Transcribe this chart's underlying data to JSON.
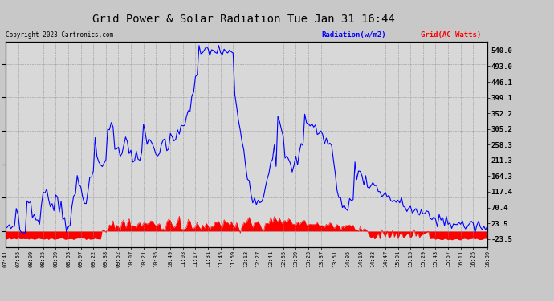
{
  "title": "Grid Power & Solar Radiation Tue Jan 31 16:44",
  "copyright": "Copyright 2023 Cartronics.com",
  "legend_radiation": "Radiation(w/m2)",
  "legend_grid": "Grid(AC Watts)",
  "radiation_color": "blue",
  "grid_color": "red",
  "background_color": "#c8c8c8",
  "plot_bg_color": "#d8d8d8",
  "yticks_right": [
    540.0,
    493.0,
    446.1,
    399.1,
    352.2,
    305.2,
    258.3,
    211.3,
    164.3,
    117.4,
    70.4,
    23.5,
    -23.5
  ],
  "ylim": [
    -47,
    565
  ],
  "xlabels": [
    "07:41",
    "07:55",
    "08:09",
    "08:25",
    "08:39",
    "08:53",
    "09:07",
    "09:22",
    "09:38",
    "09:52",
    "10:07",
    "10:21",
    "10:35",
    "10:49",
    "11:03",
    "11:17",
    "11:31",
    "11:45",
    "11:59",
    "12:13",
    "12:27",
    "12:41",
    "12:55",
    "13:09",
    "13:23",
    "13:37",
    "13:51",
    "14:05",
    "14:19",
    "14:33",
    "14:47",
    "15:01",
    "15:15",
    "15:29",
    "15:43",
    "15:57",
    "16:11",
    "16:25",
    "16:39"
  ]
}
